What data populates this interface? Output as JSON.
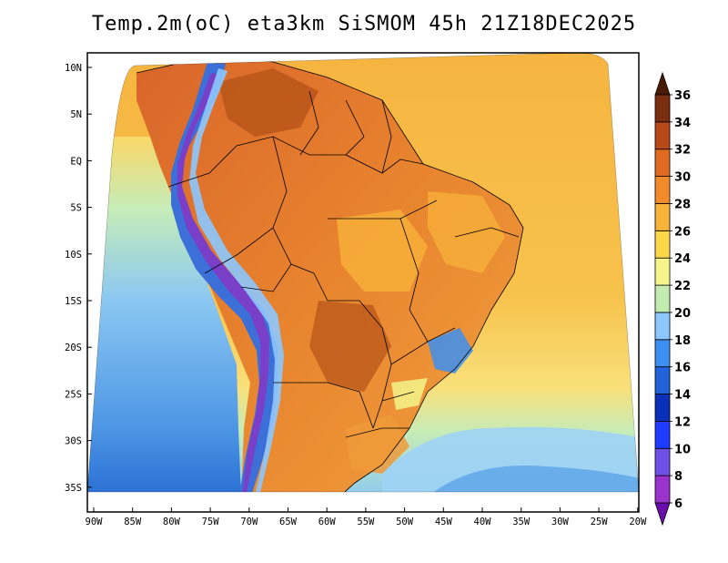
{
  "title": "Temp.2m(oC) eta3km SiSMOM 45h 21Z18DEC2025",
  "y_axis_labels": [
    "10N",
    "5N",
    "EQ",
    "5S",
    "10S",
    "15S",
    "20S",
    "25S",
    "30S",
    "35S"
  ],
  "x_axis_labels": [
    "90W",
    "85W",
    "80W",
    "75W",
    "70W",
    "65W",
    "60W",
    "55W",
    "50W",
    "45W",
    "40W",
    "35W",
    "30W",
    "25W",
    "20W"
  ],
  "colorbar": {
    "levels": [
      "6",
      "8",
      "10",
      "12",
      "14",
      "16",
      "18",
      "20",
      "22",
      "24",
      "26",
      "28",
      "30",
      "32",
      "34",
      "36"
    ],
    "colors": [
      "#6a0dad",
      "#9a32cd",
      "#6f4fe6",
      "#1e3cff",
      "#0a2fb8",
      "#1f62d9",
      "#3d8ff0",
      "#8cc8ff",
      "#c5ecb0",
      "#f5f58a",
      "#ffd84a",
      "#f7b23a",
      "#f08a2a",
      "#e06a20",
      "#b84a1a",
      "#7a2e10",
      "#4a1a08"
    ]
  },
  "map_colors": {
    "ocean_warm": "#f5b642",
    "ocean_cool": "#fce68a",
    "ocean_cold": "#9fd3f5",
    "ocean_colder": "#5ca4e8",
    "land_hot": "#e07a2a",
    "land_warm": "#f09a3a",
    "land_very_hot": "#b8561a",
    "andes_cold": "#3d6fd8",
    "andes_colder": "#7a3fc8"
  }
}
